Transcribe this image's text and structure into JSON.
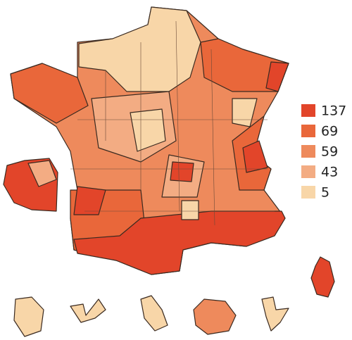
{
  "chart_data": {
    "type": "choropleth",
    "legend": [
      {
        "value": 137,
        "color": "#e2452a"
      },
      {
        "value": 69,
        "color": "#e9673a"
      },
      {
        "value": 59,
        "color": "#ee8a5c"
      },
      {
        "value": 43,
        "color": "#f3ac83"
      },
      {
        "value": 5,
        "color": "#f8d6a8"
      }
    ]
  }
}
